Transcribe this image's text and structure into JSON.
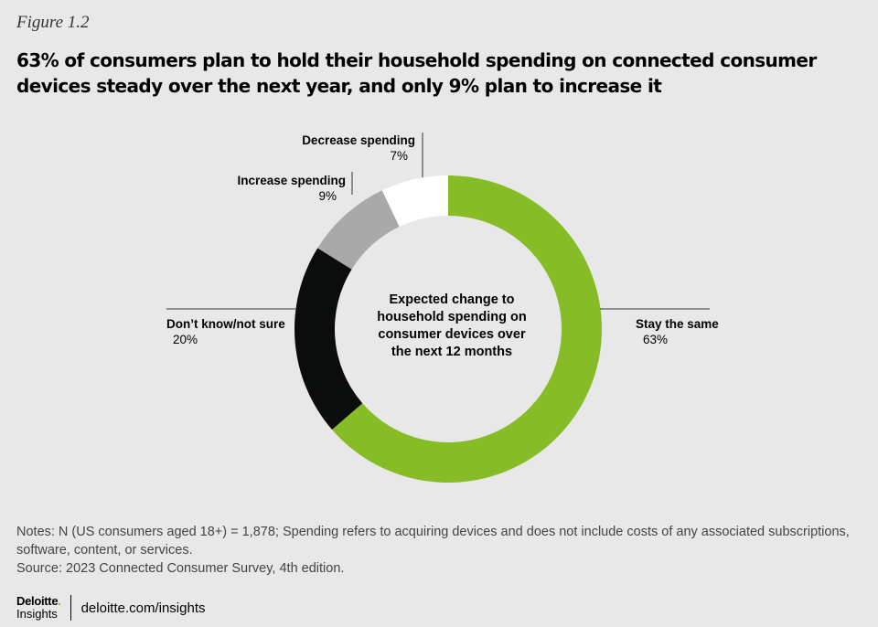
{
  "figure_label": "Figure 1.2",
  "title": "63% of consumers plan to hold their household spending on connected consumer devices steady over the next year, and only 9% plan to increase it",
  "chart_data": {
    "type": "pie",
    "donut": true,
    "center_label": [
      "Expected change to",
      "household spending on",
      "consumer devices over",
      "the next 12 months"
    ],
    "slices": [
      {
        "label": "Stay the same",
        "value": 63,
        "display": "63%",
        "color": "#86bc25"
      },
      {
        "label": "Don’t know/not sure",
        "value": 20,
        "display": "20%",
        "color": "#0b0c0c"
      },
      {
        "label": "Increase spending",
        "value": 9,
        "display": "9%",
        "color": "#a9a9a9"
      },
      {
        "label": "Decrease spending",
        "value": 7,
        "display": "7%",
        "color": "#ffffff"
      }
    ],
    "legend": "none"
  },
  "notes": {
    "line1": "Notes: N (US consumers aged 18+) = 1,878; Spending refers to acquiring devices and does not include costs of any associated subscriptions,",
    "line2": "software, content, or services.",
    "source": "Source: 2023 Connected Consumer Survey, 4th edition."
  },
  "footer": {
    "logo_brand": "Deloitte",
    "logo_dot": ".",
    "logo_sub": "Insights",
    "url": "deloitte.com/insights"
  }
}
